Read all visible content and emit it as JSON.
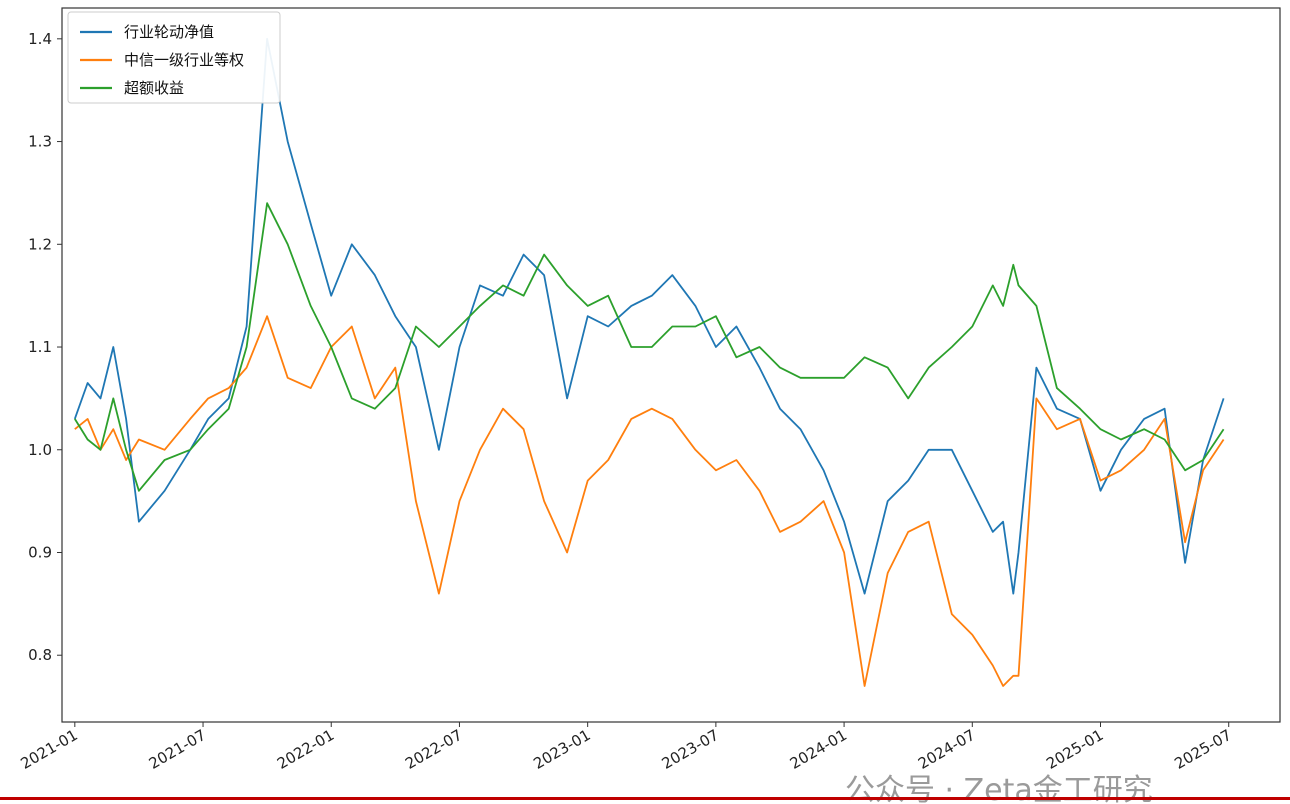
{
  "chart_data": {
    "type": "line",
    "title": "",
    "xlabel": "",
    "ylabel": "",
    "x_ticks": [
      "2021-01",
      "2021-07",
      "2022-01",
      "2022-07",
      "2023-01",
      "2023-07",
      "2024-01",
      "2024-07",
      "2025-01",
      "2025-07"
    ],
    "x_range": [
      2020.95,
      2025.7
    ],
    "y_ticks": [
      "0.8",
      "0.9",
      "1.0",
      "1.1",
      "1.2",
      "1.3",
      "1.4"
    ],
    "ylim": [
      0.735,
      1.43
    ],
    "grid": false,
    "legend_position": "top-left",
    "series": [
      {
        "name": "行业轮动净值",
        "color": "#1f77b4",
        "x": [
          2021.0,
          2021.05,
          2021.1,
          2021.15,
          2021.2,
          2021.25,
          2021.35,
          2021.45,
          2021.52,
          2021.6,
          2021.67,
          2021.75,
          2021.83,
          2021.92,
          2022.0,
          2022.08,
          2022.17,
          2022.25,
          2022.33,
          2022.42,
          2022.5,
          2022.58,
          2022.67,
          2022.75,
          2022.83,
          2022.92,
          2023.0,
          2023.08,
          2023.17,
          2023.25,
          2023.33,
          2023.42,
          2023.5,
          2023.58,
          2023.67,
          2023.75,
          2023.83,
          2023.92,
          2024.0,
          2024.08,
          2024.17,
          2024.25,
          2024.33,
          2024.42,
          2024.5,
          2024.58,
          2024.62,
          2024.66,
          2024.68,
          2024.75,
          2024.83,
          2024.92,
          2025.0,
          2025.08,
          2025.17,
          2025.25,
          2025.33,
          2025.4,
          2025.48
        ],
        "values": [
          1.03,
          1.065,
          1.05,
          1.1,
          1.03,
          0.93,
          0.96,
          1.0,
          1.03,
          1.05,
          1.12,
          1.4,
          1.3,
          1.22,
          1.15,
          1.2,
          1.17,
          1.13,
          1.1,
          1.0,
          1.1,
          1.16,
          1.15,
          1.19,
          1.17,
          1.05,
          1.13,
          1.12,
          1.14,
          1.15,
          1.17,
          1.14,
          1.1,
          1.12,
          1.08,
          1.04,
          1.02,
          0.98,
          0.93,
          0.86,
          0.95,
          0.97,
          1.0,
          1.0,
          0.96,
          0.92,
          0.93,
          0.86,
          0.9,
          1.08,
          1.04,
          1.03,
          0.96,
          1.0,
          1.03,
          1.04,
          0.89,
          0.99,
          1.05
        ]
      },
      {
        "name": "中信一级行业等权",
        "color": "#ff7f0e",
        "x": [
          2021.0,
          2021.05,
          2021.1,
          2021.15,
          2021.2,
          2021.25,
          2021.35,
          2021.45,
          2021.52,
          2021.6,
          2021.67,
          2021.75,
          2021.83,
          2021.92,
          2022.0,
          2022.08,
          2022.17,
          2022.25,
          2022.33,
          2022.42,
          2022.5,
          2022.58,
          2022.67,
          2022.75,
          2022.83,
          2022.92,
          2023.0,
          2023.08,
          2023.17,
          2023.25,
          2023.33,
          2023.42,
          2023.5,
          2023.58,
          2023.67,
          2023.75,
          2023.83,
          2023.92,
          2024.0,
          2024.08,
          2024.17,
          2024.25,
          2024.33,
          2024.42,
          2024.5,
          2024.58,
          2024.62,
          2024.66,
          2024.68,
          2024.75,
          2024.83,
          2024.92,
          2025.0,
          2025.08,
          2025.17,
          2025.25,
          2025.33,
          2025.4,
          2025.48
        ],
        "values": [
          1.02,
          1.03,
          1.0,
          1.02,
          0.99,
          1.01,
          1.0,
          1.03,
          1.05,
          1.06,
          1.08,
          1.13,
          1.07,
          1.06,
          1.1,
          1.12,
          1.05,
          1.08,
          0.95,
          0.86,
          0.95,
          1.0,
          1.04,
          1.02,
          0.95,
          0.9,
          0.97,
          0.99,
          1.03,
          1.04,
          1.03,
          1.0,
          0.98,
          0.99,
          0.96,
          0.92,
          0.93,
          0.95,
          0.9,
          0.77,
          0.88,
          0.92,
          0.93,
          0.84,
          0.82,
          0.79,
          0.77,
          0.78,
          0.78,
          1.05,
          1.02,
          1.03,
          0.97,
          0.98,
          1.0,
          1.03,
          0.91,
          0.98,
          1.01
        ]
      },
      {
        "name": "超额收益",
        "color": "#2ca02c",
        "x": [
          2021.0,
          2021.05,
          2021.1,
          2021.15,
          2021.2,
          2021.25,
          2021.35,
          2021.45,
          2021.52,
          2021.6,
          2021.67,
          2021.75,
          2021.83,
          2021.92,
          2022.0,
          2022.08,
          2022.17,
          2022.25,
          2022.33,
          2022.42,
          2022.5,
          2022.58,
          2022.67,
          2022.75,
          2022.83,
          2022.92,
          2023.0,
          2023.08,
          2023.17,
          2023.25,
          2023.33,
          2023.42,
          2023.5,
          2023.58,
          2023.67,
          2023.75,
          2023.83,
          2023.92,
          2024.0,
          2024.08,
          2024.17,
          2024.25,
          2024.33,
          2024.42,
          2024.5,
          2024.58,
          2024.62,
          2024.66,
          2024.68,
          2024.75,
          2024.83,
          2024.92,
          2025.0,
          2025.08,
          2025.17,
          2025.25,
          2025.33,
          2025.4,
          2025.48
        ],
        "values": [
          1.03,
          1.01,
          1.0,
          1.05,
          1.0,
          0.96,
          0.99,
          1.0,
          1.02,
          1.04,
          1.1,
          1.24,
          1.2,
          1.14,
          1.1,
          1.05,
          1.04,
          1.06,
          1.12,
          1.1,
          1.12,
          1.14,
          1.16,
          1.15,
          1.19,
          1.16,
          1.14,
          1.15,
          1.1,
          1.1,
          1.12,
          1.12,
          1.13,
          1.09,
          1.1,
          1.08,
          1.07,
          1.07,
          1.07,
          1.09,
          1.08,
          1.05,
          1.08,
          1.1,
          1.12,
          1.16,
          1.14,
          1.18,
          1.16,
          1.14,
          1.06,
          1.04,
          1.02,
          1.01,
          1.02,
          1.01,
          0.98,
          0.99,
          1.02
        ]
      }
    ]
  },
  "watermark": "公众号 · Zeta金工研究",
  "colors": {
    "axis": "#333333",
    "accent_rule": "#c00000"
  }
}
